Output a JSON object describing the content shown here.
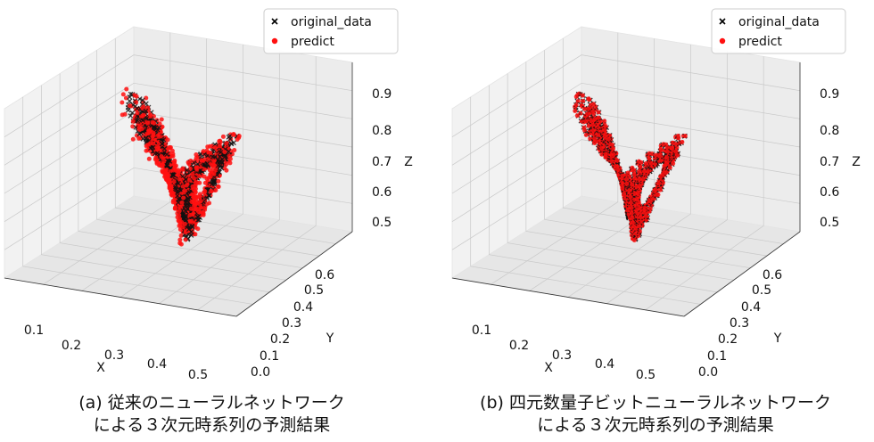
{
  "chart_data": [
    {
      "type": "scatter",
      "caption": [
        "(a) 従来のニューラルネットワーク",
        "による３次元時系列の予測結果"
      ],
      "xlabel": "X",
      "ylabel": "Y",
      "zlabel": "Z",
      "x_ticks": [
        "0.1",
        "0.2",
        "0.3",
        "0.4",
        "0.5"
      ],
      "y_ticks": [
        "0.0",
        "0.1",
        "0.2",
        "0.3",
        "0.4",
        "0.5",
        "0.6"
      ],
      "z_ticks": [
        "0.5",
        "0.6",
        "0.7",
        "0.8",
        "0.9"
      ],
      "xlim": [
        0.05,
        0.55
      ],
      "ylim": [
        -0.05,
        0.65
      ],
      "zlim": [
        0.42,
        0.93
      ],
      "grid": true,
      "legend": {
        "placement": "top-right",
        "entries": [
          "original_data",
          "predict"
        ]
      },
      "series": [
        {
          "name": "original_data",
          "marker": "x",
          "color": "#000000"
        },
        {
          "name": "predict",
          "marker": "o",
          "color": "#ff0000"
        }
      ],
      "note": "Lorenz-attractor trajectory; predict points deviate visibly from original_data"
    },
    {
      "type": "scatter",
      "caption": [
        "(b) 四元数量子ビットニューラルネットワーク",
        "による３次元時系列の予測結果"
      ],
      "xlabel": "X",
      "ylabel": "Y",
      "zlabel": "Z",
      "x_ticks": [
        "0.1",
        "0.2",
        "0.3",
        "0.4",
        "0.5"
      ],
      "y_ticks": [
        "0.0",
        "0.1",
        "0.2",
        "0.3",
        "0.4",
        "0.5",
        "0.6"
      ],
      "z_ticks": [
        "0.5",
        "0.6",
        "0.7",
        "0.8",
        "0.9"
      ],
      "xlim": [
        0.05,
        0.55
      ],
      "ylim": [
        -0.05,
        0.65
      ],
      "zlim": [
        0.42,
        0.93
      ],
      "grid": true,
      "legend": {
        "placement": "top-right",
        "entries": [
          "original_data",
          "predict"
        ]
      },
      "series": [
        {
          "name": "original_data",
          "marker": "x",
          "color": "#000000"
        },
        {
          "name": "predict",
          "marker": "o",
          "color": "#ff0000"
        }
      ],
      "note": "Lorenz-attractor trajectory; predict points overlap original_data closely"
    }
  ]
}
